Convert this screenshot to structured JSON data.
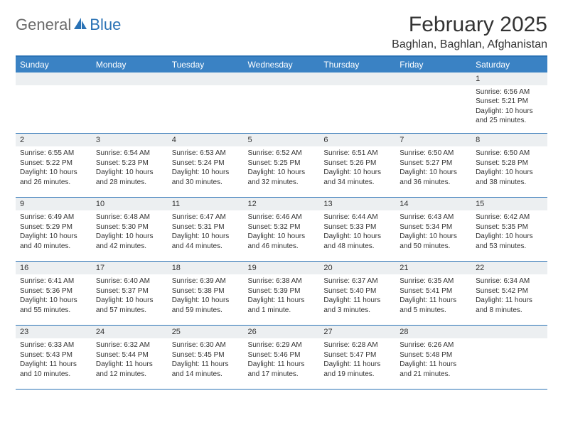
{
  "brand": {
    "general": "General",
    "blue": "Blue"
  },
  "header": {
    "month_title": "February 2025",
    "location": "Baghlan, Baghlan, Afghanistan"
  },
  "colors": {
    "header_bg": "#3a82c4",
    "divider": "#2a72b5",
    "daynum_bg": "#eceff1",
    "text": "#333333",
    "logo_gray": "#6b6b6b",
    "logo_blue": "#2a72b5"
  },
  "day_labels": [
    "Sunday",
    "Monday",
    "Tuesday",
    "Wednesday",
    "Thursday",
    "Friday",
    "Saturday"
  ],
  "weeks": [
    [
      {
        "n": "",
        "sr": "",
        "ss": "",
        "dl": ""
      },
      {
        "n": "",
        "sr": "",
        "ss": "",
        "dl": ""
      },
      {
        "n": "",
        "sr": "",
        "ss": "",
        "dl": ""
      },
      {
        "n": "",
        "sr": "",
        "ss": "",
        "dl": ""
      },
      {
        "n": "",
        "sr": "",
        "ss": "",
        "dl": ""
      },
      {
        "n": "",
        "sr": "",
        "ss": "",
        "dl": ""
      },
      {
        "n": "1",
        "sr": "Sunrise: 6:56 AM",
        "ss": "Sunset: 5:21 PM",
        "dl": "Daylight: 10 hours and 25 minutes."
      }
    ],
    [
      {
        "n": "2",
        "sr": "Sunrise: 6:55 AM",
        "ss": "Sunset: 5:22 PM",
        "dl": "Daylight: 10 hours and 26 minutes."
      },
      {
        "n": "3",
        "sr": "Sunrise: 6:54 AM",
        "ss": "Sunset: 5:23 PM",
        "dl": "Daylight: 10 hours and 28 minutes."
      },
      {
        "n": "4",
        "sr": "Sunrise: 6:53 AM",
        "ss": "Sunset: 5:24 PM",
        "dl": "Daylight: 10 hours and 30 minutes."
      },
      {
        "n": "5",
        "sr": "Sunrise: 6:52 AM",
        "ss": "Sunset: 5:25 PM",
        "dl": "Daylight: 10 hours and 32 minutes."
      },
      {
        "n": "6",
        "sr": "Sunrise: 6:51 AM",
        "ss": "Sunset: 5:26 PM",
        "dl": "Daylight: 10 hours and 34 minutes."
      },
      {
        "n": "7",
        "sr": "Sunrise: 6:50 AM",
        "ss": "Sunset: 5:27 PM",
        "dl": "Daylight: 10 hours and 36 minutes."
      },
      {
        "n": "8",
        "sr": "Sunrise: 6:50 AM",
        "ss": "Sunset: 5:28 PM",
        "dl": "Daylight: 10 hours and 38 minutes."
      }
    ],
    [
      {
        "n": "9",
        "sr": "Sunrise: 6:49 AM",
        "ss": "Sunset: 5:29 PM",
        "dl": "Daylight: 10 hours and 40 minutes."
      },
      {
        "n": "10",
        "sr": "Sunrise: 6:48 AM",
        "ss": "Sunset: 5:30 PM",
        "dl": "Daylight: 10 hours and 42 minutes."
      },
      {
        "n": "11",
        "sr": "Sunrise: 6:47 AM",
        "ss": "Sunset: 5:31 PM",
        "dl": "Daylight: 10 hours and 44 minutes."
      },
      {
        "n": "12",
        "sr": "Sunrise: 6:46 AM",
        "ss": "Sunset: 5:32 PM",
        "dl": "Daylight: 10 hours and 46 minutes."
      },
      {
        "n": "13",
        "sr": "Sunrise: 6:44 AM",
        "ss": "Sunset: 5:33 PM",
        "dl": "Daylight: 10 hours and 48 minutes."
      },
      {
        "n": "14",
        "sr": "Sunrise: 6:43 AM",
        "ss": "Sunset: 5:34 PM",
        "dl": "Daylight: 10 hours and 50 minutes."
      },
      {
        "n": "15",
        "sr": "Sunrise: 6:42 AM",
        "ss": "Sunset: 5:35 PM",
        "dl": "Daylight: 10 hours and 53 minutes."
      }
    ],
    [
      {
        "n": "16",
        "sr": "Sunrise: 6:41 AM",
        "ss": "Sunset: 5:36 PM",
        "dl": "Daylight: 10 hours and 55 minutes."
      },
      {
        "n": "17",
        "sr": "Sunrise: 6:40 AM",
        "ss": "Sunset: 5:37 PM",
        "dl": "Daylight: 10 hours and 57 minutes."
      },
      {
        "n": "18",
        "sr": "Sunrise: 6:39 AM",
        "ss": "Sunset: 5:38 PM",
        "dl": "Daylight: 10 hours and 59 minutes."
      },
      {
        "n": "19",
        "sr": "Sunrise: 6:38 AM",
        "ss": "Sunset: 5:39 PM",
        "dl": "Daylight: 11 hours and 1 minute."
      },
      {
        "n": "20",
        "sr": "Sunrise: 6:37 AM",
        "ss": "Sunset: 5:40 PM",
        "dl": "Daylight: 11 hours and 3 minutes."
      },
      {
        "n": "21",
        "sr": "Sunrise: 6:35 AM",
        "ss": "Sunset: 5:41 PM",
        "dl": "Daylight: 11 hours and 5 minutes."
      },
      {
        "n": "22",
        "sr": "Sunrise: 6:34 AM",
        "ss": "Sunset: 5:42 PM",
        "dl": "Daylight: 11 hours and 8 minutes."
      }
    ],
    [
      {
        "n": "23",
        "sr": "Sunrise: 6:33 AM",
        "ss": "Sunset: 5:43 PM",
        "dl": "Daylight: 11 hours and 10 minutes."
      },
      {
        "n": "24",
        "sr": "Sunrise: 6:32 AM",
        "ss": "Sunset: 5:44 PM",
        "dl": "Daylight: 11 hours and 12 minutes."
      },
      {
        "n": "25",
        "sr": "Sunrise: 6:30 AM",
        "ss": "Sunset: 5:45 PM",
        "dl": "Daylight: 11 hours and 14 minutes."
      },
      {
        "n": "26",
        "sr": "Sunrise: 6:29 AM",
        "ss": "Sunset: 5:46 PM",
        "dl": "Daylight: 11 hours and 17 minutes."
      },
      {
        "n": "27",
        "sr": "Sunrise: 6:28 AM",
        "ss": "Sunset: 5:47 PM",
        "dl": "Daylight: 11 hours and 19 minutes."
      },
      {
        "n": "28",
        "sr": "Sunrise: 6:26 AM",
        "ss": "Sunset: 5:48 PM",
        "dl": "Daylight: 11 hours and 21 minutes."
      },
      {
        "n": "",
        "sr": "",
        "ss": "",
        "dl": ""
      }
    ]
  ]
}
